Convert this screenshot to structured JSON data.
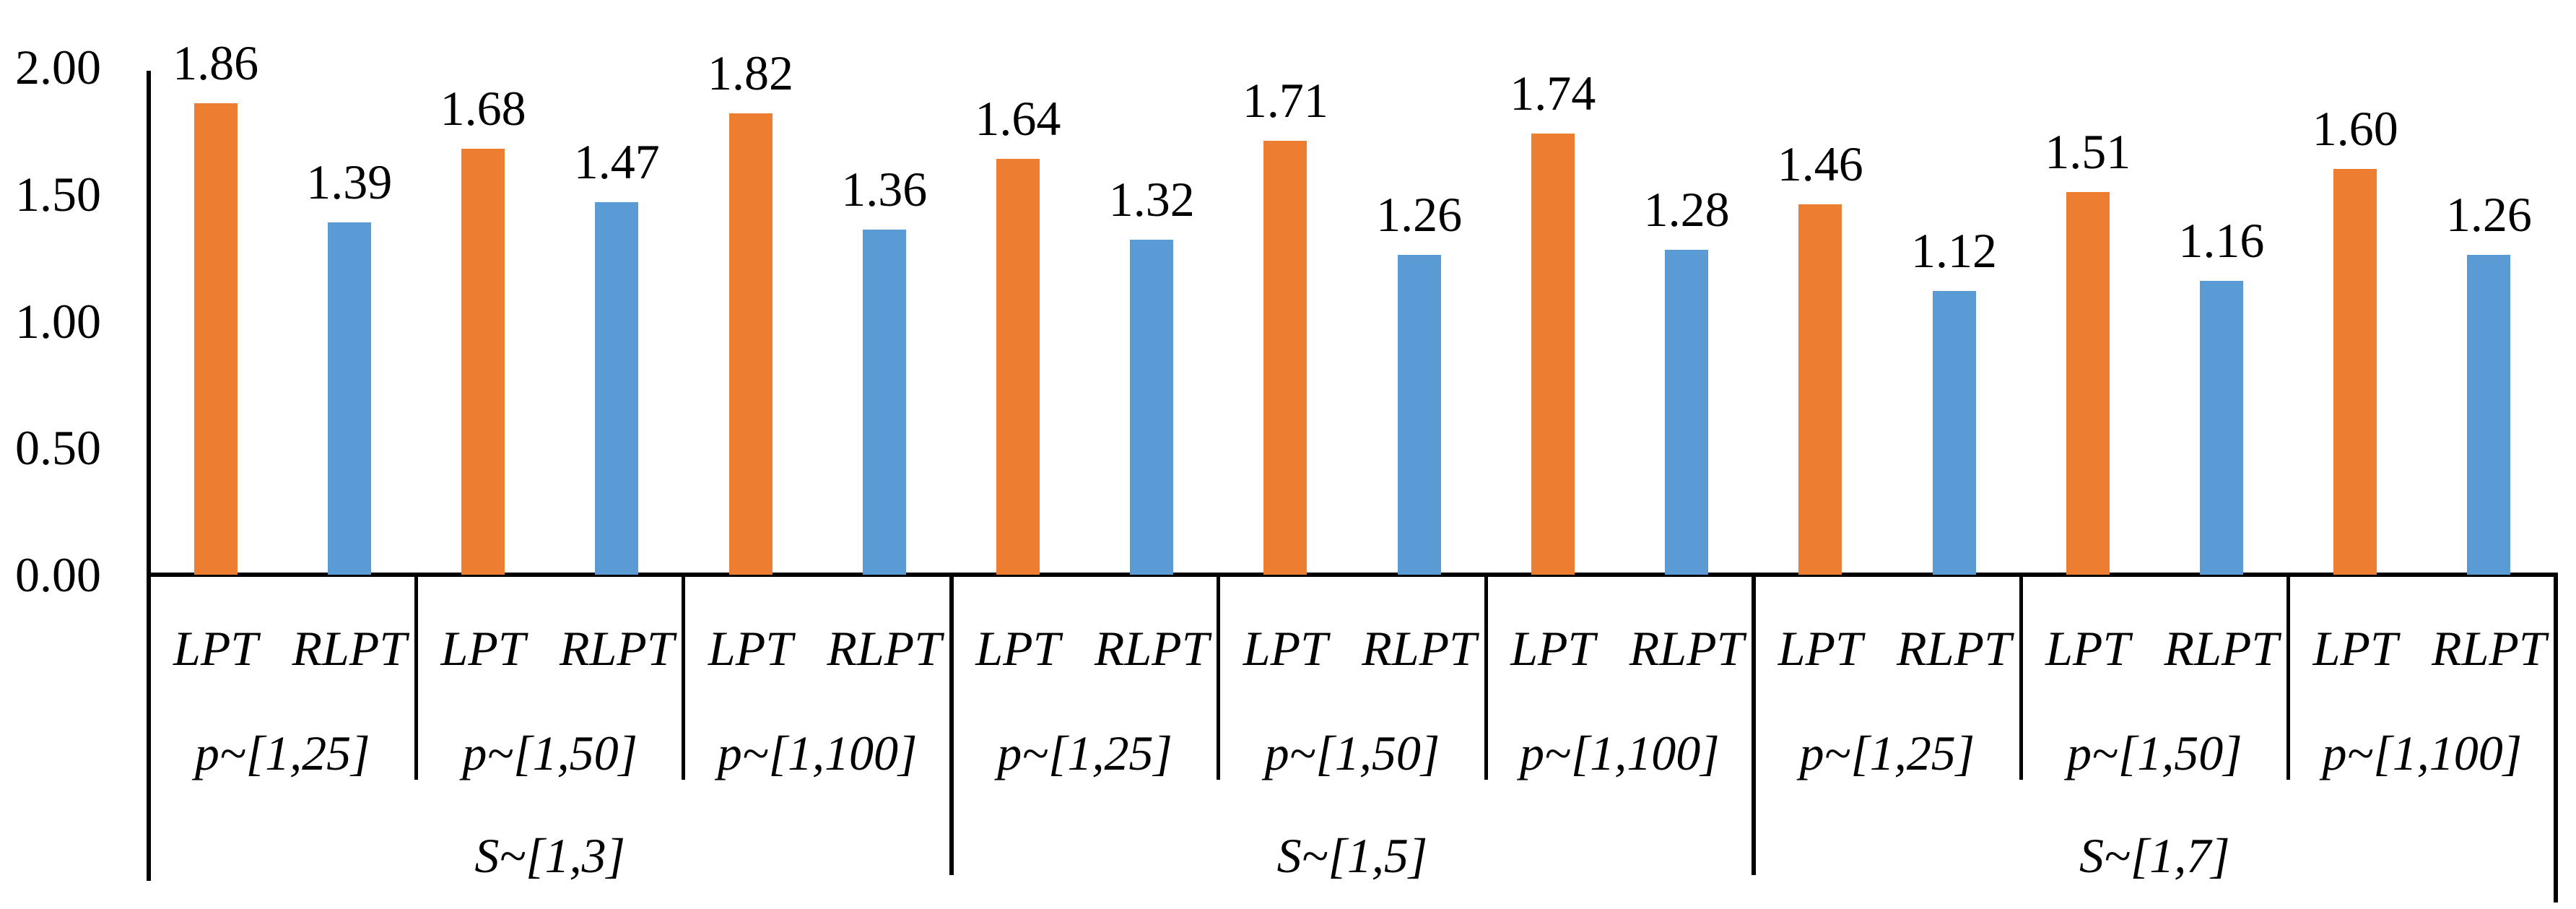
{
  "chart_data": {
    "type": "bar",
    "title": "",
    "xlabel": "",
    "ylabel": "",
    "ylim": [
      0,
      2
    ],
    "grid": false,
    "legend": "none (series named on category axis)",
    "yticks": [
      {
        "value": 0.0,
        "label": "0.00"
      },
      {
        "value": 0.5,
        "label": "0.50"
      },
      {
        "value": 1.0,
        "label": "1.00"
      },
      {
        "value": 1.5,
        "label": "1.50"
      },
      {
        "value": 2.0,
        "label": "2.00"
      }
    ],
    "series_names": [
      "LPT",
      "RLPT"
    ],
    "colors": {
      "LPT": "#ED7D31",
      "RLPT": "#5B9BD5",
      "axis": "#000000"
    },
    "groups": [
      {
        "s_label": "S~[1,3]",
        "p_groups": [
          {
            "p_label": "p~[1,25]",
            "LPT": 1.86,
            "RLPT": 1.39
          },
          {
            "p_label": "p~[1,50]",
            "LPT": 1.68,
            "RLPT": 1.47
          },
          {
            "p_label": "p~[1,100]",
            "LPT": 1.82,
            "RLPT": 1.36
          }
        ]
      },
      {
        "s_label": "S~[1,5]",
        "p_groups": [
          {
            "p_label": "p~[1,25]",
            "LPT": 1.64,
            "RLPT": 1.32
          },
          {
            "p_label": "p~[1,50]",
            "LPT": 1.71,
            "RLPT": 1.26
          },
          {
            "p_label": "p~[1,100]",
            "LPT": 1.74,
            "RLPT": 1.28
          }
        ]
      },
      {
        "s_label": "S~[1,7]",
        "p_groups": [
          {
            "p_label": "p~[1,25]",
            "LPT": 1.46,
            "RLPT": 1.12
          },
          {
            "p_label": "p~[1,50]",
            "LPT": 1.51,
            "RLPT": 1.16
          },
          {
            "p_label": "p~[1,100]",
            "LPT": 1.6,
            "RLPT": 1.26
          }
        ]
      }
    ]
  }
}
